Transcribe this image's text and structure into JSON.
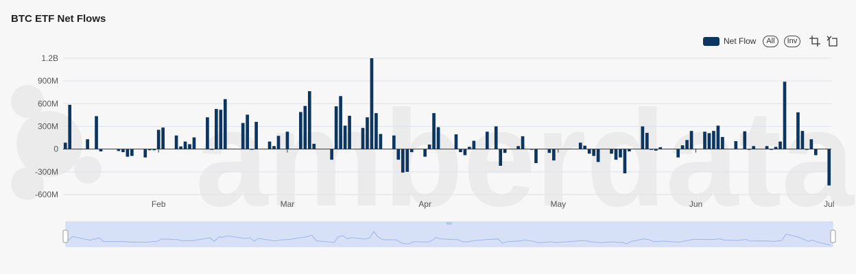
{
  "title": "BTC ETF Net Flows",
  "watermark": "amberdata",
  "toolbar": {
    "legend_label": "Net Flow",
    "all_label": "All",
    "inv_label": "Inv",
    "zoom_icon": "crop-zoom-icon",
    "reset_icon": "zoom-reset-icon"
  },
  "colors": {
    "bar": "#0c3560",
    "grid": "#dde1ea",
    "axis_text": "#555555",
    "watermark": "#ebebeb",
    "slider_fill": "#d6e1f7",
    "slider_line": "#9fb5e8"
  },
  "chart_data": {
    "type": "bar",
    "title": "BTC ETF Net Flows",
    "series": [
      {
        "name": "Net Flow"
      }
    ],
    "y_ticks": [
      1200000000,
      900000000,
      600000000,
      300000000,
      0,
      -300000000,
      -600000000
    ],
    "y_tick_labels": [
      "1.2B",
      "900M",
      "600M",
      "300M",
      "0",
      "-300M",
      "-600M"
    ],
    "ylim": [
      -600000000,
      1200000000
    ],
    "x_ticks": [
      "Feb",
      "Mar",
      "Apr",
      "May",
      "Jun",
      "Jul"
    ],
    "x_tick_dates": [
      "2024-02-01",
      "2024-03-01",
      "2024-04-01",
      "2024-05-01",
      "2024-06-01",
      "2024-07-01"
    ],
    "xlim": [
      "2024-01-11",
      "2024-07-01"
    ],
    "grid": true,
    "legend": "top-right",
    "points": [
      {
        "date": "2024-01-11",
        "value": 85000000
      },
      {
        "date": "2024-01-12",
        "value": 585000000
      },
      {
        "date": "2024-01-16",
        "value": 130000000
      },
      {
        "date": "2024-01-18",
        "value": 435000000
      },
      {
        "date": "2024-01-19",
        "value": -30000000
      },
      {
        "date": "2024-01-23",
        "value": -25000000
      },
      {
        "date": "2024-01-24",
        "value": -40000000
      },
      {
        "date": "2024-01-25",
        "value": -100000000
      },
      {
        "date": "2024-01-26",
        "value": -90000000
      },
      {
        "date": "2024-01-29",
        "value": -110000000
      },
      {
        "date": "2024-01-30",
        "value": -15000000
      },
      {
        "date": "2024-01-31",
        "value": -15000000
      },
      {
        "date": "2024-02-01",
        "value": 255000000
      },
      {
        "date": "2024-02-02",
        "value": 285000000
      },
      {
        "date": "2024-02-05",
        "value": 180000000
      },
      {
        "date": "2024-02-06",
        "value": 35000000
      },
      {
        "date": "2024-02-07",
        "value": 100000000
      },
      {
        "date": "2024-02-08",
        "value": 65000000
      },
      {
        "date": "2024-02-09",
        "value": 155000000
      },
      {
        "date": "2024-02-12",
        "value": 420000000
      },
      {
        "date": "2024-02-13",
        "value": -5000000
      },
      {
        "date": "2024-02-14",
        "value": 530000000
      },
      {
        "date": "2024-02-15",
        "value": 520000000
      },
      {
        "date": "2024-02-16",
        "value": 660000000
      },
      {
        "date": "2024-02-20",
        "value": 345000000
      },
      {
        "date": "2024-02-21",
        "value": 455000000
      },
      {
        "date": "2024-02-22",
        "value": -5000000
      },
      {
        "date": "2024-02-23",
        "value": 360000000
      },
      {
        "date": "2024-02-26",
        "value": 100000000
      },
      {
        "date": "2024-02-27",
        "value": 40000000
      },
      {
        "date": "2024-02-28",
        "value": 175000000
      },
      {
        "date": "2024-03-01",
        "value": 230000000
      },
      {
        "date": "2024-03-04",
        "value": 490000000
      },
      {
        "date": "2024-03-05",
        "value": 570000000
      },
      {
        "date": "2024-03-06",
        "value": 765000000
      },
      {
        "date": "2024-03-07",
        "value": 70000000
      },
      {
        "date": "2024-03-11",
        "value": -140000000
      },
      {
        "date": "2024-03-12",
        "value": 565000000
      },
      {
        "date": "2024-03-13",
        "value": 700000000
      },
      {
        "date": "2024-03-14",
        "value": 310000000
      },
      {
        "date": "2024-03-15",
        "value": 440000000
      },
      {
        "date": "2024-03-18",
        "value": 280000000
      },
      {
        "date": "2024-03-19",
        "value": 420000000
      },
      {
        "date": "2024-03-20",
        "value": 1200000000
      },
      {
        "date": "2024-03-21",
        "value": 475000000
      },
      {
        "date": "2024-03-22",
        "value": 200000000
      },
      {
        "date": "2024-03-25",
        "value": 180000000
      },
      {
        "date": "2024-03-26",
        "value": -140000000
      },
      {
        "date": "2024-03-27",
        "value": -310000000
      },
      {
        "date": "2024-03-28",
        "value": -300000000
      },
      {
        "date": "2024-03-29",
        "value": -40000000
      },
      {
        "date": "2024-04-01",
        "value": -100000000
      },
      {
        "date": "2024-04-02",
        "value": 60000000
      },
      {
        "date": "2024-04-03",
        "value": 475000000
      },
      {
        "date": "2024-04-04",
        "value": 290000000
      },
      {
        "date": "2024-04-08",
        "value": 195000000
      },
      {
        "date": "2024-04-09",
        "value": -40000000
      },
      {
        "date": "2024-04-10",
        "value": -80000000
      },
      {
        "date": "2024-04-11",
        "value": 30000000
      },
      {
        "date": "2024-04-12",
        "value": 110000000
      },
      {
        "date": "2024-04-15",
        "value": 230000000
      },
      {
        "date": "2024-04-17",
        "value": 300000000
      },
      {
        "date": "2024-04-18",
        "value": -220000000
      },
      {
        "date": "2024-04-19",
        "value": -50000000
      },
      {
        "date": "2024-04-22",
        "value": 40000000
      },
      {
        "date": "2024-04-23",
        "value": 170000000
      },
      {
        "date": "2024-04-25",
        "value": -5000000
      },
      {
        "date": "2024-04-26",
        "value": -185000000
      },
      {
        "date": "2024-04-29",
        "value": -50000000
      },
      {
        "date": "2024-04-30",
        "value": -150000000
      },
      {
        "date": "2024-05-06",
        "value": 85000000
      },
      {
        "date": "2024-05-07",
        "value": 45000000
      },
      {
        "date": "2024-05-08",
        "value": -60000000
      },
      {
        "date": "2024-05-09",
        "value": -90000000
      },
      {
        "date": "2024-05-10",
        "value": -170000000
      },
      {
        "date": "2024-05-13",
        "value": -60000000
      },
      {
        "date": "2024-05-14",
        "value": -140000000
      },
      {
        "date": "2024-05-15",
        "value": -110000000
      },
      {
        "date": "2024-05-16",
        "value": -320000000
      },
      {
        "date": "2024-05-17",
        "value": -30000000
      },
      {
        "date": "2024-05-20",
        "value": 300000000
      },
      {
        "date": "2024-05-21",
        "value": 215000000
      },
      {
        "date": "2024-05-22",
        "value": -10000000
      },
      {
        "date": "2024-05-23",
        "value": -20000000
      },
      {
        "date": "2024-05-24",
        "value": 25000000
      },
      {
        "date": "2024-05-28",
        "value": -110000000
      },
      {
        "date": "2024-05-29",
        "value": 50000000
      },
      {
        "date": "2024-05-30",
        "value": 120000000
      },
      {
        "date": "2024-05-31",
        "value": 240000000
      },
      {
        "date": "2024-06-03",
        "value": 230000000
      },
      {
        "date": "2024-06-04",
        "value": 210000000
      },
      {
        "date": "2024-06-05",
        "value": 240000000
      },
      {
        "date": "2024-06-06",
        "value": 310000000
      },
      {
        "date": "2024-06-07",
        "value": 160000000
      },
      {
        "date": "2024-06-10",
        "value": 105000000
      },
      {
        "date": "2024-06-12",
        "value": 235000000
      },
      {
        "date": "2024-06-13",
        "value": -5000000
      },
      {
        "date": "2024-06-14",
        "value": 40000000
      },
      {
        "date": "2024-06-17",
        "value": 40000000
      },
      {
        "date": "2024-06-18",
        "value": -10000000
      },
      {
        "date": "2024-06-19",
        "value": 30000000
      },
      {
        "date": "2024-06-20",
        "value": 100000000
      },
      {
        "date": "2024-06-21",
        "value": 890000000
      },
      {
        "date": "2024-06-24",
        "value": 485000000
      },
      {
        "date": "2024-06-25",
        "value": 240000000
      },
      {
        "date": "2024-06-26",
        "value": -10000000
      },
      {
        "date": "2024-06-27",
        "value": 130000000
      },
      {
        "date": "2024-06-28",
        "value": -80000000
      },
      {
        "date": "2024-07-01",
        "value": -480000000
      }
    ]
  }
}
